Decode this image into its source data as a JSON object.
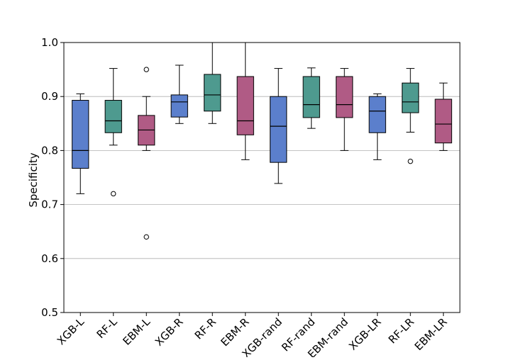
{
  "chart_data": {
    "type": "boxplot",
    "title": "",
    "xlabel": "",
    "ylabel": "Specificity",
    "ylim": [
      0.5,
      1.0
    ],
    "yticks": [
      "0.5",
      "0.6",
      "0.7",
      "0.8",
      "0.9",
      "1.0"
    ],
    "grid": "horizontal",
    "categories": [
      "XGB-L",
      "RF-L",
      "EBM-L",
      "XGB-R",
      "RF-R",
      "EBM-R",
      "XGB-rand",
      "RF-rand",
      "EBM-rand",
      "XGB-LR",
      "RF-LR",
      "EBM-LR"
    ],
    "colors": {
      "XGB": "#5b7fcc",
      "RF": "#4e9a8f",
      "EBM": "#b05b85"
    },
    "boxes": [
      {
        "label": "XGB-L",
        "model": "XGB",
        "whislo": 0.72,
        "q1": 0.767,
        "median": 0.8,
        "q3": 0.893,
        "whishi": 0.905,
        "fliers": []
      },
      {
        "label": "RF-L",
        "model": "RF",
        "whislo": 0.81,
        "q1": 0.833,
        "median": 0.855,
        "q3": 0.893,
        "whishi": 0.952,
        "fliers": [
          0.72
        ]
      },
      {
        "label": "EBM-L",
        "model": "EBM",
        "whislo": 0.8,
        "q1": 0.81,
        "median": 0.838,
        "q3": 0.865,
        "whishi": 0.9,
        "fliers": [
          0.95,
          0.64
        ]
      },
      {
        "label": "XGB-R",
        "model": "XGB",
        "whislo": 0.85,
        "q1": 0.862,
        "median": 0.89,
        "q3": 0.903,
        "whishi": 0.958,
        "fliers": []
      },
      {
        "label": "RF-R",
        "model": "RF",
        "whislo": 0.85,
        "q1": 0.873,
        "median": 0.903,
        "q3": 0.941,
        "whishi": 1.0,
        "fliers": []
      },
      {
        "label": "EBM-R",
        "model": "EBM",
        "whislo": 0.783,
        "q1": 0.829,
        "median": 0.855,
        "q3": 0.937,
        "whishi": 1.0,
        "fliers": []
      },
      {
        "label": "XGB-rand",
        "model": "XGB",
        "whislo": 0.739,
        "q1": 0.778,
        "median": 0.845,
        "q3": 0.9,
        "whishi": 0.952,
        "fliers": []
      },
      {
        "label": "RF-rand",
        "model": "RF",
        "whislo": 0.841,
        "q1": 0.861,
        "median": 0.885,
        "q3": 0.937,
        "whishi": 0.953,
        "fliers": []
      },
      {
        "label": "EBM-rand",
        "model": "EBM",
        "whislo": 0.8,
        "q1": 0.861,
        "median": 0.885,
        "q3": 0.937,
        "whishi": 0.952,
        "fliers": []
      },
      {
        "label": "XGB-LR",
        "model": "XGB",
        "whislo": 0.783,
        "q1": 0.833,
        "median": 0.873,
        "q3": 0.9,
        "whishi": 0.905,
        "fliers": []
      },
      {
        "label": "RF-LR",
        "model": "RF",
        "whislo": 0.834,
        "q1": 0.87,
        "median": 0.89,
        "q3": 0.925,
        "whishi": 0.952,
        "fliers": [
          0.78
        ]
      },
      {
        "label": "EBM-LR",
        "model": "EBM",
        "whislo": 0.8,
        "q1": 0.814,
        "median": 0.849,
        "q3": 0.895,
        "whishi": 0.925,
        "fliers": []
      }
    ]
  }
}
